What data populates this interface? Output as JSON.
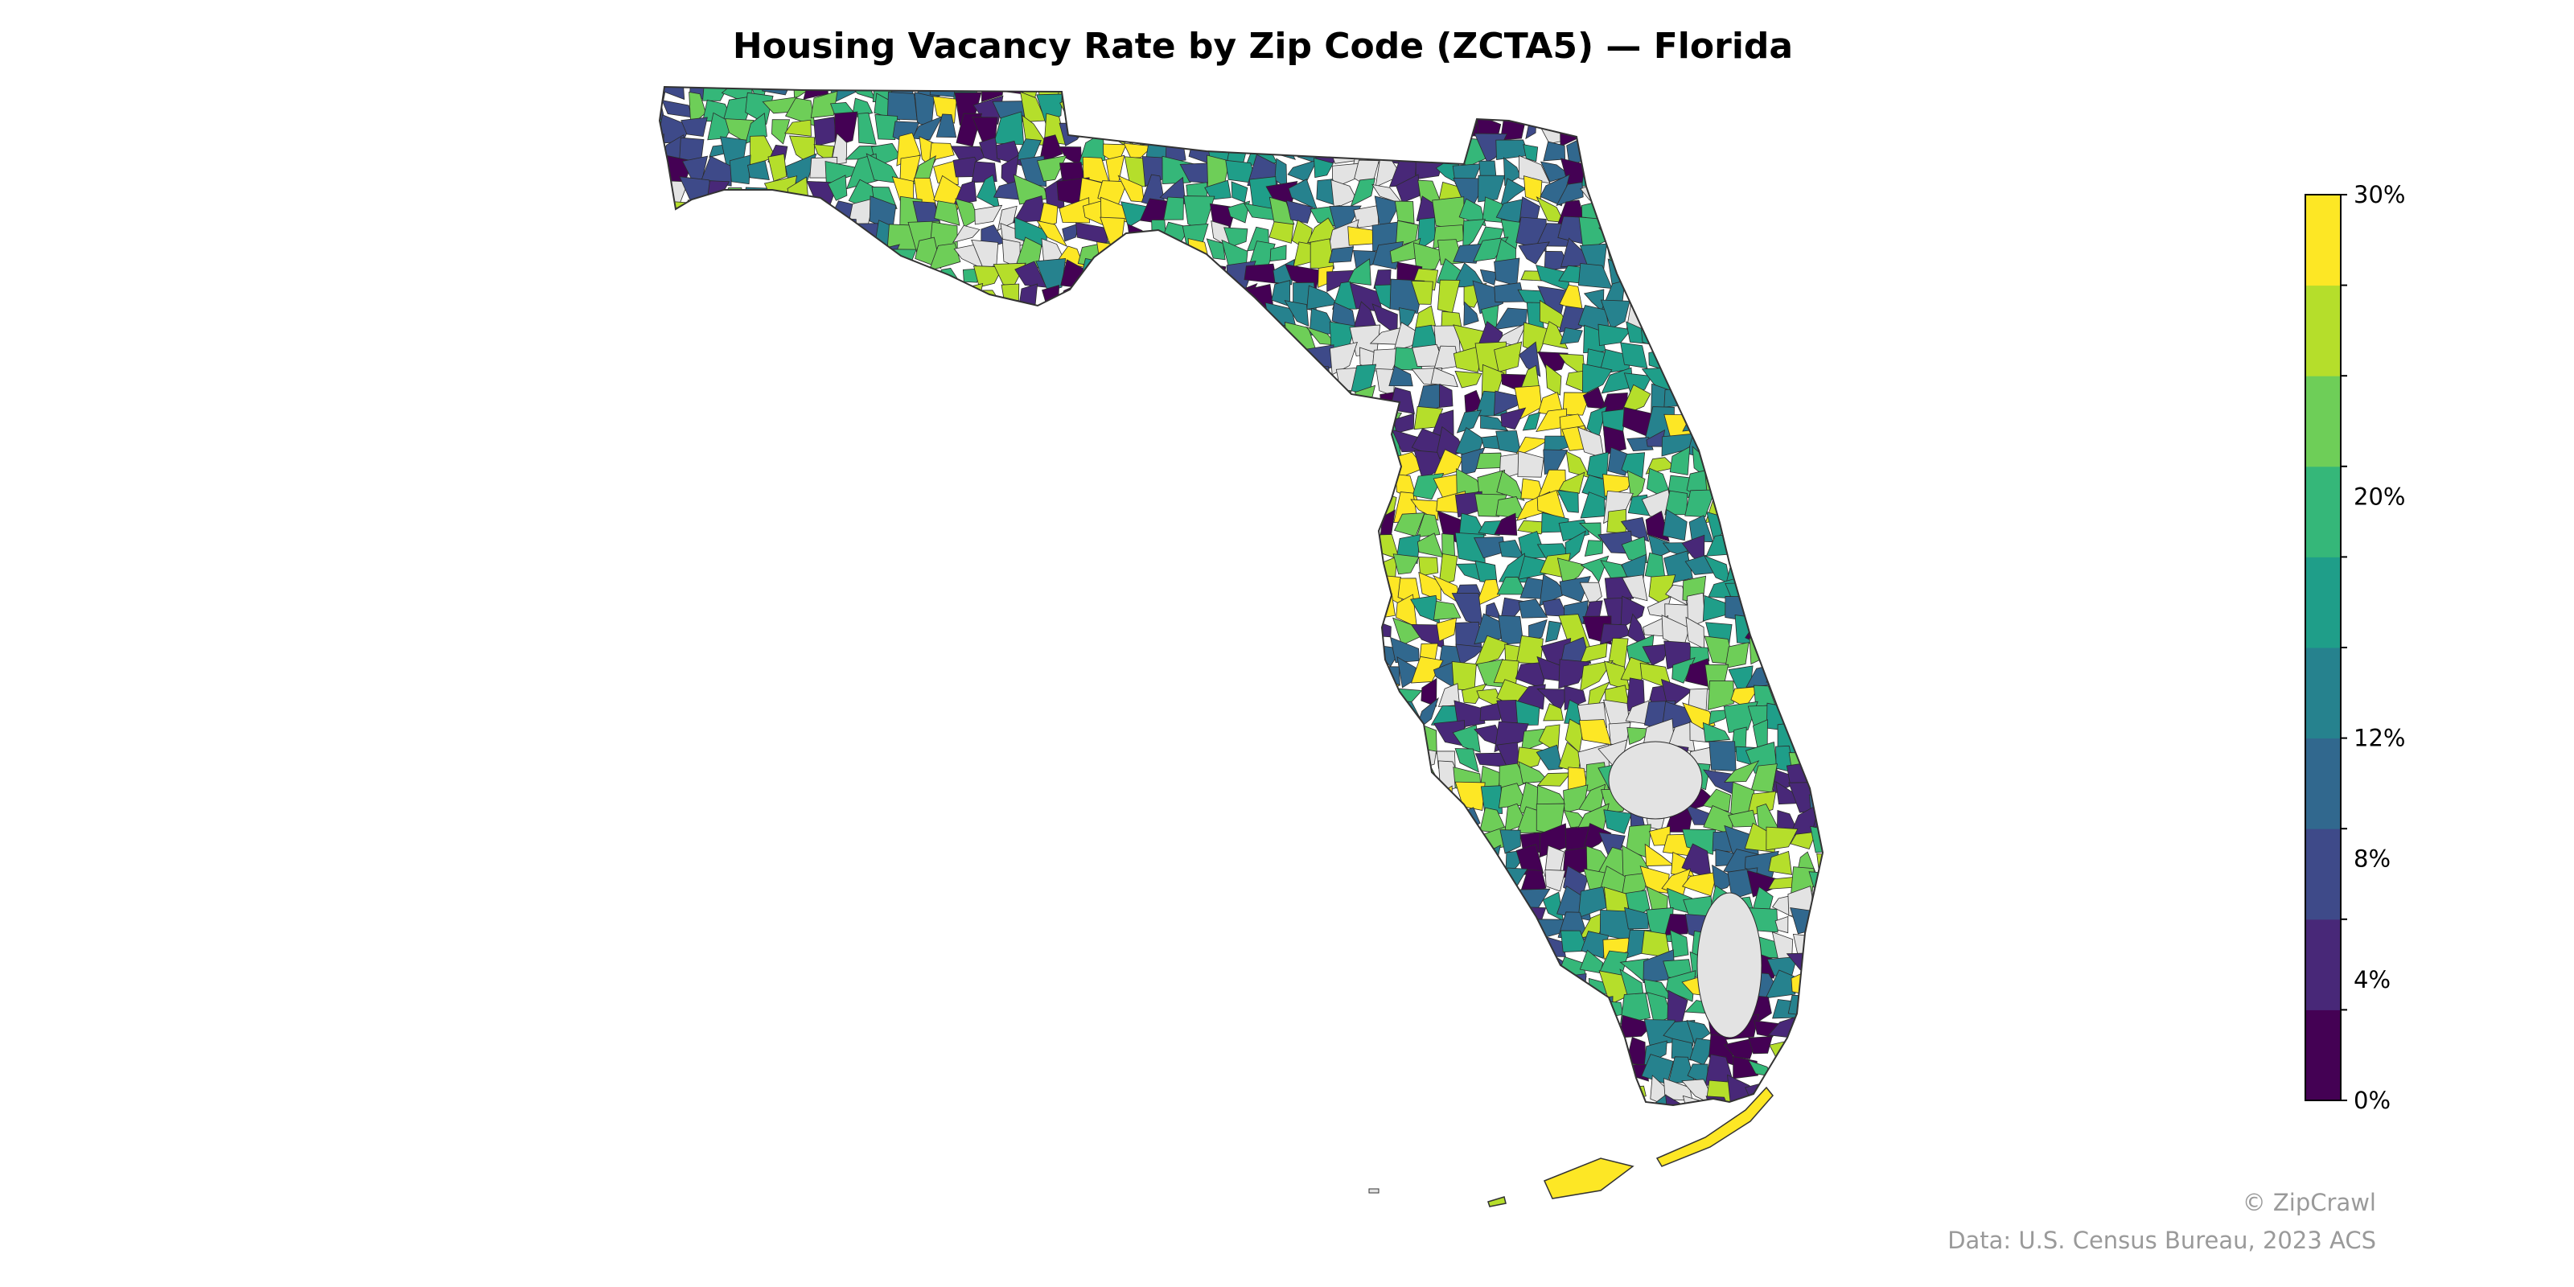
{
  "title": "Housing Vacancy Rate by Zip Code (ZCTA5) — Florida",
  "colorbar": {
    "ticks": [
      "0%",
      "4%",
      "8%",
      "12%",
      "20%",
      "30%"
    ],
    "tick_values": [
      0,
      4,
      8,
      12,
      20,
      30
    ],
    "range": [
      0,
      30
    ],
    "bins": 10,
    "colors": [
      "#440154",
      "#482878",
      "#3e4a89",
      "#31688e",
      "#26828e",
      "#1f9e89",
      "#35b779",
      "#6ece58",
      "#b5de2b",
      "#fde725"
    ]
  },
  "map": {
    "region": "Florida",
    "no_data_color": "#e3e3e3",
    "border_color": "#333333"
  },
  "credits": {
    "brand": "© ZipCrawl",
    "source": "Data: U.S. Census Bureau, 2023 ACS"
  }
}
